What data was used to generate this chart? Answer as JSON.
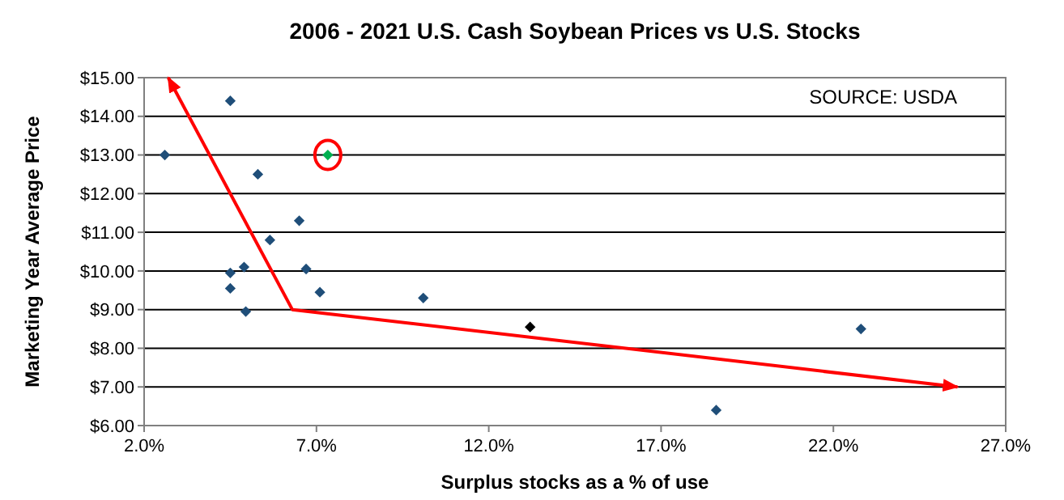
{
  "chart_data": {
    "type": "scatter",
    "title": "2006 - 2021 U.S. Cash Soybean Prices vs U.S. Stocks",
    "xlabel": "Surplus stocks as a % of use",
    "ylabel": "Marketing Year Average Price",
    "annotations": [
      "SOURCE: USDA"
    ],
    "xlim": [
      2,
      27
    ],
    "xticks": [
      {
        "value": 2,
        "label": "2.0%"
      },
      {
        "value": 7,
        "label": "7.0%"
      },
      {
        "value": 12,
        "label": "12.0%"
      },
      {
        "value": 17,
        "label": "17.0%"
      },
      {
        "value": 22,
        "label": "22.0%"
      },
      {
        "value": 27,
        "label": "27.0%"
      }
    ],
    "ylim": [
      6,
      15
    ],
    "yticks": [
      {
        "value": 6,
        "label": "$6.00"
      },
      {
        "value": 7,
        "label": "$7.00"
      },
      {
        "value": 8,
        "label": "$8.00"
      },
      {
        "value": 9,
        "label": "$9.00"
      },
      {
        "value": 10,
        "label": "$10.00"
      },
      {
        "value": 11,
        "label": "$11.00"
      },
      {
        "value": 12,
        "label": "$12.00"
      },
      {
        "value": 13,
        "label": "$13.00"
      },
      {
        "value": 14,
        "label": "$14.00"
      },
      {
        "value": 15,
        "label": "$15.00"
      }
    ],
    "grid": "y",
    "marker": "diamond",
    "series": [
      {
        "x": [
          2.6,
          4.5,
          5.3,
          6.5,
          5.65,
          4.5,
          4.9,
          6.7,
          4.5,
          4.95,
          7.1,
          7.33,
          10.1,
          13.2,
          22.8,
          18.6
        ],
        "values": [
          13.0,
          14.4,
          12.5,
          11.3,
          10.8,
          9.95,
          10.1,
          10.05,
          9.55,
          8.95,
          9.45,
          13.0,
          9.3,
          8.55,
          8.5,
          6.4
        ],
        "colors": [
          "#1f4e79",
          "#1f4e79",
          "#1f4e79",
          "#1f4e79",
          "#1f4e79",
          "#1f4e79",
          "#1f4e79",
          "#1f4e79",
          "#1f4e79",
          "#1f4e79",
          "#1f4e79",
          "#00b050",
          "#1f4e79",
          "#000000",
          "#1f4e79",
          "#1f4e79"
        ]
      },
      {
        "type": "line",
        "x": [
          2.7,
          6.3,
          25.6
        ],
        "values": [
          15.0,
          9.0,
          7.0
        ],
        "color": "#ff0000",
        "marker": "none"
      }
    ]
  }
}
